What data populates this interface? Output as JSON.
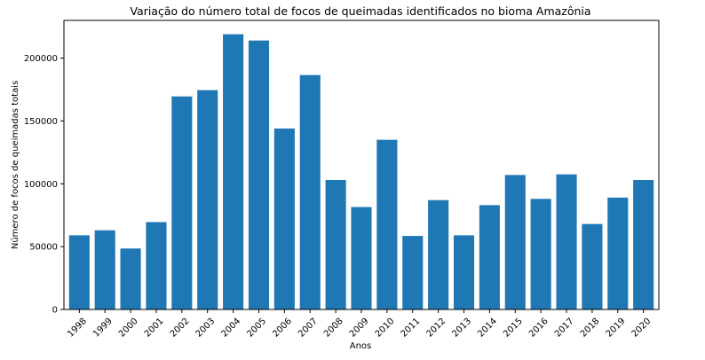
{
  "chart_data": {
    "type": "bar",
    "title": "Variação do número total de focos de queimadas identificados no bioma Amazônia",
    "xlabel": "Anos",
    "ylabel": "Número de focos de queimadas totais",
    "categories": [
      "1998",
      "1999",
      "2000",
      "2001",
      "2002",
      "2003",
      "2004",
      "2005",
      "2006",
      "2007",
      "2008",
      "2009",
      "2010",
      "2011",
      "2012",
      "2013",
      "2014",
      "2015",
      "2016",
      "2017",
      "2018",
      "2019",
      "2020"
    ],
    "values": [
      59000,
      63000,
      48500,
      69500,
      169500,
      174500,
      219000,
      214000,
      144000,
      186500,
      103000,
      81500,
      135000,
      58500,
      87000,
      59000,
      83000,
      107000,
      88000,
      107500,
      68000,
      89000,
      103000
    ],
    "ylim": [
      0,
      230000
    ],
    "yticks": [
      0,
      50000,
      100000,
      150000,
      200000
    ],
    "ytick_labels": [
      "0",
      "50000",
      "100000",
      "150000",
      "200000"
    ],
    "grid": false,
    "bar_color": "#1f77b4"
  }
}
